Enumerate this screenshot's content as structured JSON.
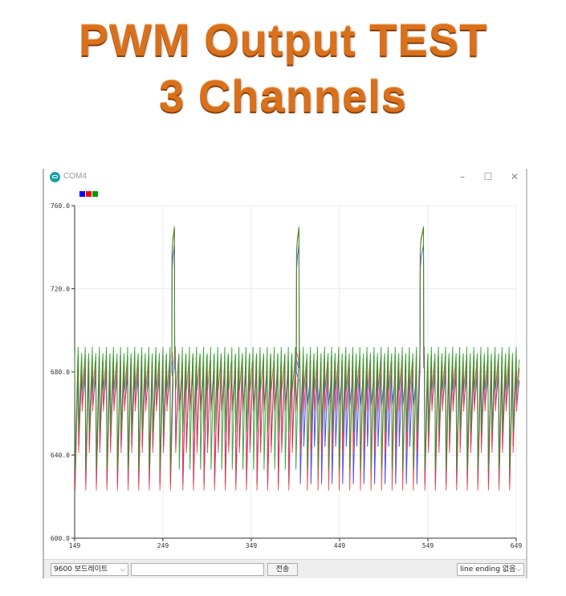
{
  "headline": {
    "line1": "PWM Output TEST",
    "line2": "3 Channels"
  },
  "window": {
    "title": "COM4",
    "buttons": {
      "minimize": "–",
      "maximize": "☐",
      "close": "✕"
    }
  },
  "legend": {
    "colors": [
      "#0000ff",
      "#ff0000",
      "#009900"
    ]
  },
  "chart_data": {
    "type": "line",
    "title": "",
    "xlabel": "",
    "ylabel": "",
    "xlim": [
      149,
      649
    ],
    "ylim": [
      600,
      760
    ],
    "x_ticks": [
      "149",
      "249",
      "349",
      "449",
      "549",
      "649"
    ],
    "y_ticks": [
      "760.0",
      "720.0",
      "680.0",
      "640.0",
      "600.0"
    ],
    "grid": true,
    "legend": "top-left",
    "series": [
      {
        "color": "#3333ee",
        "baseline": 680,
        "trough": 626,
        "spike_peak": 741
      },
      {
        "color": "#ee3333",
        "baseline": 686,
        "trough": 623,
        "spike_peak": 749
      },
      {
        "color": "#229922",
        "baseline": 690,
        "trough": 633,
        "spike_peak": 750
      }
    ],
    "spike_x": [
      [
        259,
        262
      ],
      [
        400,
        403
      ],
      [
        540,
        544
      ]
    ]
  },
  "bottombar": {
    "baud": "9600 보드레이트",
    "send": "전송",
    "line_ending": "line ending 없음"
  }
}
